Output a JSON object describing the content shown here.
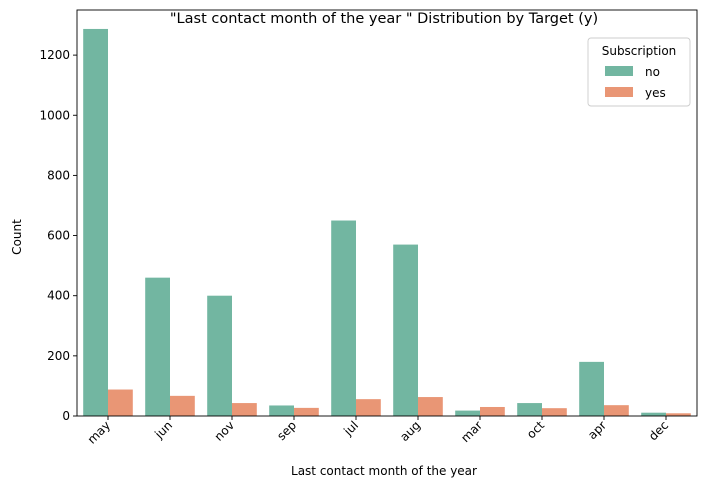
{
  "chart_data": {
    "type": "bar",
    "title": "\"Last contact month of the year \" Distribution by Target (y)",
    "xlabel": "Last contact month of the year",
    "ylabel": "Count",
    "categories": [
      "may",
      "jun",
      "nov",
      "sep",
      "jul",
      "aug",
      "mar",
      "oct",
      "apr",
      "dec"
    ],
    "series": [
      {
        "name": "no",
        "color": "#72b6a1",
        "values": [
          1287,
          460,
          400,
          35,
          650,
          570,
          18,
          43,
          180,
          11
        ]
      },
      {
        "name": "yes",
        "color": "#e99675",
        "values": [
          88,
          67,
          43,
          27,
          56,
          63,
          30,
          26,
          36,
          9
        ]
      }
    ],
    "ylim": [
      0,
      1350
    ],
    "yticks": [
      0,
      200,
      400,
      600,
      800,
      1000,
      1200
    ],
    "legend": {
      "title": "Subscription",
      "placement": "top-right"
    },
    "grid": false
  }
}
